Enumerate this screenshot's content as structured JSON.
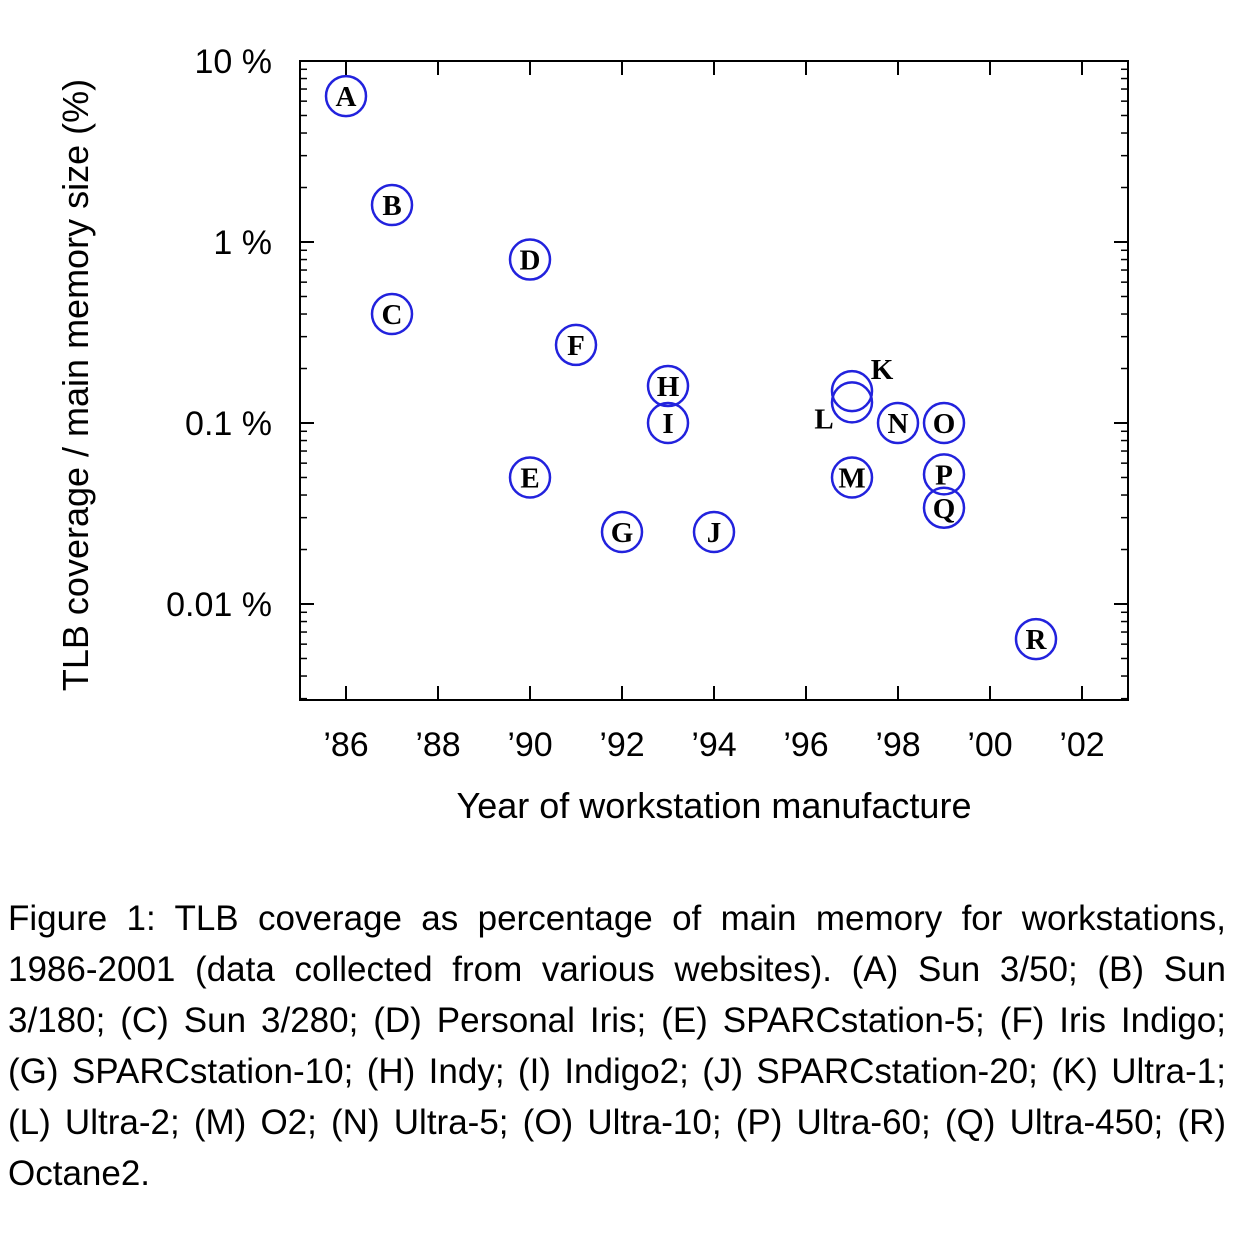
{
  "chart_data": {
    "type": "scatter",
    "title": "",
    "xlabel": "Year of workstation manufacture",
    "ylabel": "TLB coverage / main memory size (%)",
    "y_scale": "log",
    "xlim": [
      1985,
      2003
    ],
    "ylim": [
      0.002,
      10
    ],
    "x_ticks": [
      {
        "value": 1986,
        "label": "’86"
      },
      {
        "value": 1988,
        "label": "’88"
      },
      {
        "value": 1990,
        "label": "’90"
      },
      {
        "value": 1992,
        "label": "’92"
      },
      {
        "value": 1994,
        "label": "’94"
      },
      {
        "value": 1996,
        "label": "’96"
      },
      {
        "value": 1998,
        "label": "’98"
      },
      {
        "value": 2000,
        "label": "’00"
      },
      {
        "value": 2002,
        "label": "’02"
      }
    ],
    "y_ticks": [
      {
        "value": 10,
        "label": "10 %"
      },
      {
        "value": 1,
        "label": "1 %"
      },
      {
        "value": 0.1,
        "label": "0.1 %"
      },
      {
        "value": 0.01,
        "label": "0.01 %"
      }
    ],
    "marker_color": "#2222dd",
    "points": [
      {
        "label": "A",
        "x": 1986,
        "y": 6.4
      },
      {
        "label": "B",
        "x": 1987,
        "y": 1.6
      },
      {
        "label": "C",
        "x": 1987,
        "y": 0.4
      },
      {
        "label": "D",
        "x": 1990,
        "y": 0.8
      },
      {
        "label": "E",
        "x": 1990,
        "y": 0.05
      },
      {
        "label": "F",
        "x": 1991,
        "y": 0.27
      },
      {
        "label": "G",
        "x": 1992,
        "y": 0.025
      },
      {
        "label": "H",
        "x": 1993,
        "y": 0.16
      },
      {
        "label": "I",
        "x": 1993,
        "y": 0.1
      },
      {
        "label": "J",
        "x": 1994,
        "y": 0.025
      },
      {
        "label": "K",
        "x": 1997,
        "y": 0.15
      },
      {
        "label": "L",
        "x": 1997,
        "y": 0.13
      },
      {
        "label": "M",
        "x": 1997,
        "y": 0.05
      },
      {
        "label": "N",
        "x": 1998,
        "y": 0.1
      },
      {
        "label": "O",
        "x": 1999,
        "y": 0.1
      },
      {
        "label": "P",
        "x": 1999,
        "y": 0.052
      },
      {
        "label": "Q",
        "x": 1999,
        "y": 0.034
      },
      {
        "label": "R",
        "x": 2001,
        "y": 0.0064
      }
    ]
  },
  "caption": "Figure 1: TLB coverage as percentage of main memory for workstations, 1986-2001 (data collected from various websites). (A) Sun 3/50; (B) Sun 3/180; (C) Sun 3/280; (D) Personal Iris; (E) SPARCstation-5; (F) Iris Indigo; (G) SPARCstation-10; (H) Indy; (I) Indigo2; (J) SPARCstation-20; (K) Ultra-1; (L) Ultra-2; (M) O2; (N) Ultra-5; (O) Ultra-10; (P) Ultra-60; (Q) Ultra-450; (R) Octane2."
}
